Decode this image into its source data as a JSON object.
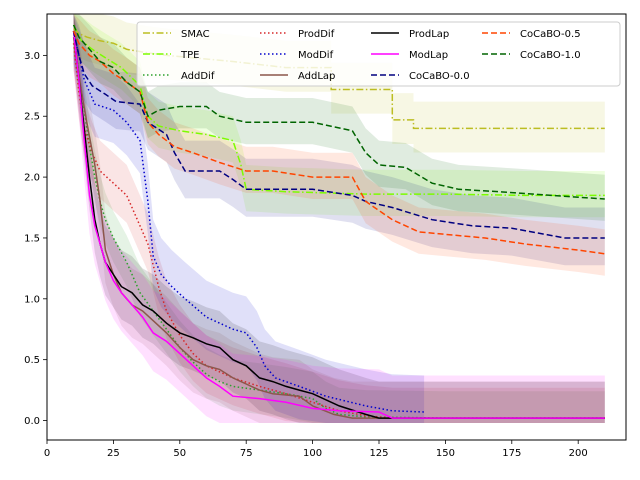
{
  "chart_data": {
    "type": "line",
    "title": "",
    "xlabel": "",
    "ylabel": "",
    "xlim": [
      0,
      218
    ],
    "ylim": [
      -0.16,
      3.34
    ],
    "xticks": [
      0,
      25,
      50,
      75,
      100,
      125,
      150,
      175,
      200
    ],
    "yticks": [
      0.0,
      0.5,
      1.0,
      1.5,
      2.0,
      2.5,
      3.0
    ],
    "xtick_labels": [
      "0",
      "25",
      "50",
      "75",
      "100",
      "125",
      "150",
      "175",
      "200"
    ],
    "ytick_labels": [
      "0.0",
      "0.5",
      "1.0",
      "1.5",
      "2.0",
      "2.5",
      "3.0"
    ],
    "legend_position": "top-right",
    "series": [
      {
        "name": "SMAC",
        "color": "#bcbd22",
        "dash": "dashdot",
        "band": 0.22,
        "points": [
          [
            10,
            3.22
          ],
          [
            12,
            3.18
          ],
          [
            15,
            3.15
          ],
          [
            20,
            3.12
          ],
          [
            25,
            3.1
          ],
          [
            30,
            3.05
          ],
          [
            38,
            3.02
          ],
          [
            45,
            3.0
          ],
          [
            55,
            2.98
          ],
          [
            70,
            2.95
          ],
          [
            90,
            2.9
          ],
          [
            107,
            2.9
          ],
          [
            107,
            2.72
          ],
          [
            130,
            2.72
          ],
          [
            130,
            2.47
          ],
          [
            138,
            2.47
          ],
          [
            138,
            2.4
          ],
          [
            210,
            2.4
          ]
        ]
      },
      {
        "name": "TPE",
        "color": "#7cfc00",
        "dash": "dashdot",
        "band": 0.2,
        "points": [
          [
            10,
            3.25
          ],
          [
            13,
            3.12
          ],
          [
            17,
            3.05
          ],
          [
            22,
            2.98
          ],
          [
            28,
            2.9
          ],
          [
            35,
            2.75
          ],
          [
            38,
            2.5
          ],
          [
            42,
            2.42
          ],
          [
            50,
            2.38
          ],
          [
            60,
            2.35
          ],
          [
            70,
            2.3
          ],
          [
            73,
            2.1
          ],
          [
            75,
            1.9
          ],
          [
            90,
            1.88
          ],
          [
            120,
            1.86
          ],
          [
            150,
            1.86
          ],
          [
            180,
            1.85
          ],
          [
            210,
            1.85
          ]
        ]
      },
      {
        "name": "AddDif",
        "color": "#2ca02c",
        "dash": "dotted",
        "band": 0.22,
        "points": [
          [
            10,
            3.2
          ],
          [
            12,
            2.85
          ],
          [
            14,
            2.55
          ],
          [
            16,
            2.25
          ],
          [
            18,
            2.0
          ],
          [
            20,
            1.8
          ],
          [
            22,
            1.65
          ],
          [
            25,
            1.5
          ],
          [
            30,
            1.3
          ],
          [
            35,
            1.05
          ],
          [
            40,
            0.9
          ],
          [
            45,
            0.75
          ],
          [
            50,
            0.6
          ],
          [
            55,
            0.48
          ],
          [
            60,
            0.38
          ],
          [
            65,
            0.32
          ],
          [
            70,
            0.28
          ],
          [
            80,
            0.25
          ],
          [
            90,
            0.22
          ],
          [
            100,
            0.18
          ],
          [
            105,
            0.1
          ],
          [
            110,
            0.05
          ],
          [
            120,
            0.03
          ],
          [
            150,
            0.02
          ],
          [
            180,
            0.02
          ],
          [
            210,
            0.02
          ]
        ]
      },
      {
        "name": "ProdDif",
        "color": "#d62728",
        "dash": "dotted",
        "band": 0.25,
        "points": [
          [
            10,
            3.1
          ],
          [
            12,
            2.7
          ],
          [
            14,
            2.4
          ],
          [
            17,
            2.2
          ],
          [
            20,
            2.05
          ],
          [
            25,
            1.95
          ],
          [
            30,
            1.85
          ],
          [
            35,
            1.6
          ],
          [
            38,
            1.45
          ],
          [
            42,
            1.1
          ],
          [
            45,
            0.9
          ],
          [
            50,
            0.7
          ],
          [
            55,
            0.55
          ],
          [
            60,
            0.45
          ],
          [
            70,
            0.35
          ],
          [
            80,
            0.28
          ],
          [
            90,
            0.22
          ],
          [
            100,
            0.15
          ],
          [
            110,
            0.08
          ],
          [
            120,
            0.04
          ],
          [
            130,
            0.02
          ],
          [
            210,
            0.02
          ]
        ]
      },
      {
        "name": "ModDif",
        "color": "#0000cd",
        "dash": "dotted",
        "band": 0.3,
        "points": [
          [
            10,
            3.2
          ],
          [
            14,
            2.8
          ],
          [
            18,
            2.6
          ],
          [
            25,
            2.55
          ],
          [
            30,
            2.45
          ],
          [
            35,
            2.3
          ],
          [
            38,
            1.8
          ],
          [
            40,
            1.35
          ],
          [
            43,
            1.2
          ],
          [
            47,
            1.1
          ],
          [
            52,
            1.0
          ],
          [
            60,
            0.85
          ],
          [
            70,
            0.75
          ],
          [
            75,
            0.72
          ],
          [
            79,
            0.6
          ],
          [
            82,
            0.45
          ],
          [
            86,
            0.35
          ],
          [
            95,
            0.28
          ],
          [
            105,
            0.2
          ],
          [
            120,
            0.12
          ],
          [
            130,
            0.08
          ],
          [
            142,
            0.07
          ]
        ]
      },
      {
        "name": "AddLap",
        "color": "#8c564b",
        "dash": "solid",
        "band": 0.3,
        "points": [
          [
            10,
            3.15
          ],
          [
            13,
            2.7
          ],
          [
            15,
            2.45
          ],
          [
            18,
            2.1
          ],
          [
            20,
            1.8
          ],
          [
            22,
            1.4
          ],
          [
            25,
            1.2
          ],
          [
            28,
            1.05
          ],
          [
            32,
            0.95
          ],
          [
            36,
            0.9
          ],
          [
            40,
            0.82
          ],
          [
            45,
            0.72
          ],
          [
            50,
            0.6
          ],
          [
            55,
            0.5
          ],
          [
            60,
            0.45
          ],
          [
            65,
            0.42
          ],
          [
            70,
            0.35
          ],
          [
            75,
            0.3
          ],
          [
            80,
            0.25
          ],
          [
            85,
            0.22
          ],
          [
            95,
            0.2
          ],
          [
            100,
            0.12
          ],
          [
            108,
            0.05
          ],
          [
            115,
            0.02
          ],
          [
            210,
            0.02
          ]
        ]
      },
      {
        "name": "ProdLap",
        "color": "#000000",
        "dash": "solid",
        "band": 0.3,
        "points": [
          [
            10,
            3.2
          ],
          [
            12,
            2.8
          ],
          [
            14,
            2.4
          ],
          [
            16,
            2.0
          ],
          [
            18,
            1.65
          ],
          [
            20,
            1.45
          ],
          [
            22,
            1.3
          ],
          [
            25,
            1.2
          ],
          [
            28,
            1.1
          ],
          [
            32,
            1.05
          ],
          [
            36,
            0.95
          ],
          [
            40,
            0.9
          ],
          [
            45,
            0.8
          ],
          [
            50,
            0.72
          ],
          [
            55,
            0.68
          ],
          [
            60,
            0.63
          ],
          [
            65,
            0.6
          ],
          [
            70,
            0.5
          ],
          [
            75,
            0.45
          ],
          [
            80,
            0.35
          ],
          [
            85,
            0.32
          ],
          [
            90,
            0.28
          ],
          [
            95,
            0.25
          ],
          [
            100,
            0.22
          ],
          [
            110,
            0.12
          ],
          [
            120,
            0.05
          ],
          [
            125,
            0.02
          ],
          [
            210,
            0.02
          ]
        ]
      },
      {
        "name": "ModLap",
        "color": "#ff00ff",
        "dash": "solid",
        "band": 0.35,
        "points": [
          [
            10,
            3.2
          ],
          [
            12,
            2.8
          ],
          [
            14,
            2.3
          ],
          [
            16,
            1.85
          ],
          [
            18,
            1.6
          ],
          [
            20,
            1.45
          ],
          [
            22,
            1.3
          ],
          [
            25,
            1.15
          ],
          [
            28,
            1.05
          ],
          [
            32,
            0.95
          ],
          [
            36,
            0.85
          ],
          [
            40,
            0.72
          ],
          [
            45,
            0.65
          ],
          [
            50,
            0.55
          ],
          [
            55,
            0.45
          ],
          [
            60,
            0.35
          ],
          [
            65,
            0.28
          ],
          [
            70,
            0.2
          ],
          [
            80,
            0.18
          ],
          [
            90,
            0.15
          ],
          [
            100,
            0.1
          ],
          [
            110,
            0.08
          ],
          [
            125,
            0.07
          ],
          [
            130,
            0.02
          ],
          [
            210,
            0.02
          ]
        ]
      },
      {
        "name": "CoCaBO-0.0",
        "color": "#000080",
        "dash": "dashed",
        "band": 0.25,
        "points": [
          [
            10,
            3.2
          ],
          [
            12,
            3.0
          ],
          [
            14,
            2.85
          ],
          [
            17,
            2.75
          ],
          [
            22,
            2.68
          ],
          [
            26,
            2.62
          ],
          [
            35,
            2.6
          ],
          [
            38,
            2.45
          ],
          [
            45,
            2.35
          ],
          [
            48,
            2.2
          ],
          [
            52,
            2.05
          ],
          [
            65,
            2.05
          ],
          [
            70,
            1.98
          ],
          [
            75,
            1.9
          ],
          [
            100,
            1.9
          ],
          [
            115,
            1.85
          ],
          [
            120,
            1.8
          ],
          [
            130,
            1.75
          ],
          [
            145,
            1.65
          ],
          [
            160,
            1.6
          ],
          [
            175,
            1.58
          ],
          [
            195,
            1.5
          ],
          [
            210,
            1.5
          ]
        ]
      },
      {
        "name": "CoCaBO-0.5",
        "color": "#ff4500",
        "dash": "dashed",
        "band": 0.2,
        "points": [
          [
            10,
            3.2
          ],
          [
            12,
            3.1
          ],
          [
            16,
            3.0
          ],
          [
            20,
            2.95
          ],
          [
            25,
            2.85
          ],
          [
            30,
            2.78
          ],
          [
            35,
            2.7
          ],
          [
            38,
            2.45
          ],
          [
            42,
            2.35
          ],
          [
            48,
            2.25
          ],
          [
            55,
            2.2
          ],
          [
            65,
            2.12
          ],
          [
            75,
            2.05
          ],
          [
            85,
            2.05
          ],
          [
            100,
            2.0
          ],
          [
            115,
            2.0
          ],
          [
            120,
            1.8
          ],
          [
            130,
            1.65
          ],
          [
            140,
            1.55
          ],
          [
            165,
            1.5
          ],
          [
            180,
            1.45
          ],
          [
            200,
            1.4
          ],
          [
            210,
            1.37
          ]
        ]
      },
      {
        "name": "CoCaBO-1.0",
        "color": "#006400",
        "dash": "dashed",
        "band": 0.2,
        "points": [
          [
            10,
            3.25
          ],
          [
            12,
            3.15
          ],
          [
            16,
            3.05
          ],
          [
            20,
            2.95
          ],
          [
            25,
            2.9
          ],
          [
            30,
            2.78
          ],
          [
            35,
            2.7
          ],
          [
            38,
            2.5
          ],
          [
            42,
            2.55
          ],
          [
            50,
            2.58
          ],
          [
            60,
            2.58
          ],
          [
            65,
            2.5
          ],
          [
            75,
            2.45
          ],
          [
            100,
            2.45
          ],
          [
            115,
            2.38
          ],
          [
            120,
            2.2
          ],
          [
            125,
            2.1
          ],
          [
            135,
            2.08
          ],
          [
            145,
            1.95
          ],
          [
            155,
            1.9
          ],
          [
            170,
            1.88
          ],
          [
            190,
            1.85
          ],
          [
            210,
            1.82
          ]
        ]
      }
    ]
  }
}
